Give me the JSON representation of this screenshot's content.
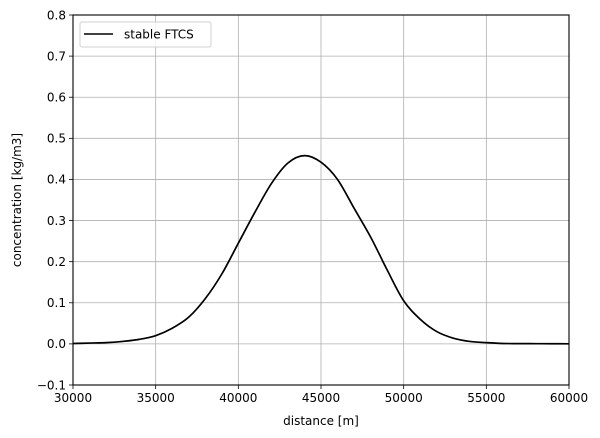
{
  "chart_data": {
    "type": "line",
    "title": "",
    "xlabel": "distance [m]",
    "ylabel": "concentration [kg/m3]",
    "xlim": [
      30000,
      60000
    ],
    "ylim": [
      -0.1,
      0.8
    ],
    "grid": true,
    "legend_position": "upper left",
    "xticks": [
      30000,
      35000,
      40000,
      45000,
      50000,
      55000,
      60000
    ],
    "xtick_labels": [
      "30000",
      "35000",
      "40000",
      "45000",
      "50000",
      "55000",
      "60000"
    ],
    "yticks": [
      -0.1,
      0.0,
      0.1,
      0.2,
      0.3,
      0.4,
      0.5,
      0.6,
      0.7,
      0.8
    ],
    "ytick_labels": [
      "−0.1",
      "0.0",
      "0.1",
      "0.2",
      "0.3",
      "0.4",
      "0.5",
      "0.6",
      "0.7",
      "0.8"
    ],
    "series": [
      {
        "name": "stable FTCS",
        "color": "#000000",
        "x": [
          30000,
          31000,
          32000,
          33000,
          34000,
          35000,
          36000,
          37000,
          38000,
          39000,
          40000,
          41000,
          42000,
          43000,
          44000,
          45000,
          46000,
          47000,
          48000,
          49000,
          50000,
          51000,
          52000,
          53000,
          54000,
          55000,
          56000,
          57000,
          58000,
          59000,
          60000
        ],
        "y": [
          0.001,
          0.002,
          0.003,
          0.006,
          0.011,
          0.02,
          0.038,
          0.065,
          0.11,
          0.17,
          0.245,
          0.32,
          0.39,
          0.44,
          0.458,
          0.442,
          0.4,
          0.33,
          0.26,
          0.18,
          0.105,
          0.06,
          0.03,
          0.014,
          0.006,
          0.003,
          0.001,
          0.0007,
          0.0005,
          0.0003,
          0.0002
        ]
      }
    ]
  }
}
